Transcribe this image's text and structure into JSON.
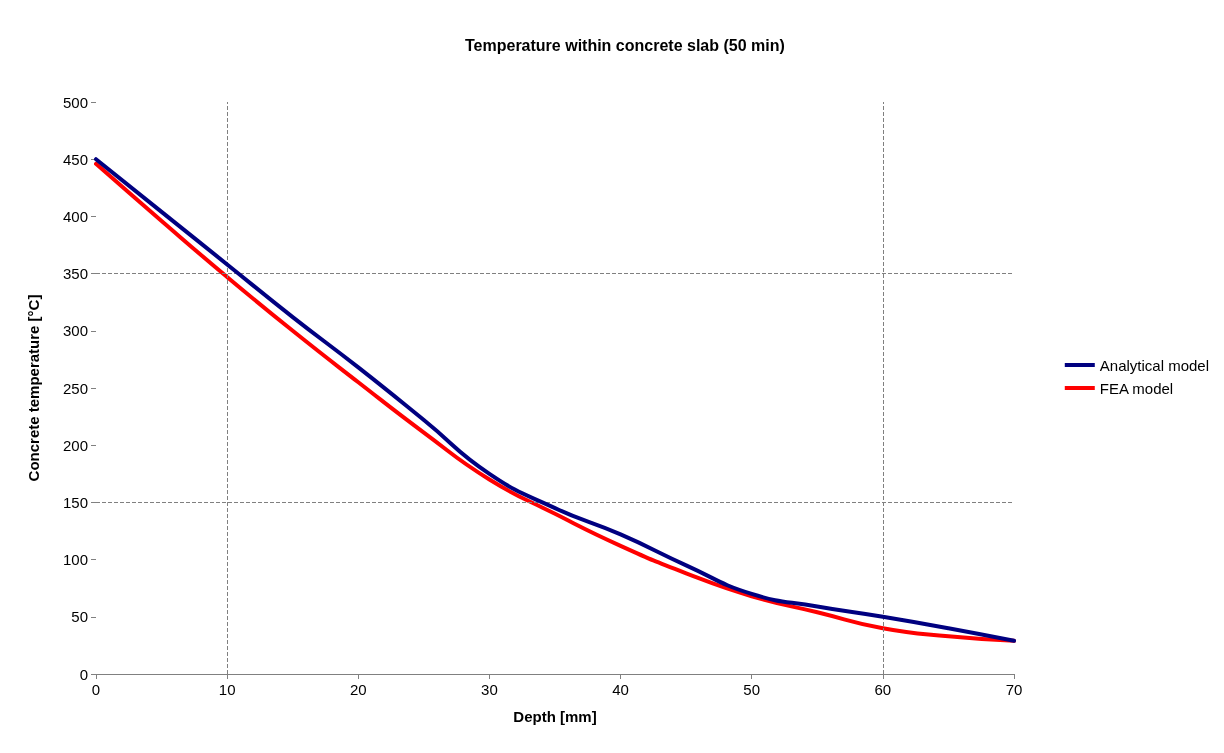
{
  "chart_data": {
    "type": "line",
    "title": "Temperature within concrete slab (50 min)",
    "xlabel": "Depth [mm]",
    "ylabel": "Concrete temperature [°C]",
    "x": [
      0,
      5,
      10,
      15,
      20,
      25,
      30,
      35,
      40,
      45,
      50,
      55,
      60,
      65,
      70
    ],
    "series": [
      {
        "name": "Analytical model",
        "color": "#000080",
        "values": [
          450,
          404,
          358,
          312,
          268,
          222,
          175,
          145,
          122,
          95,
          70,
          59,
          50,
          40,
          29
        ]
      },
      {
        "name": "FEA model",
        "color": "#ff0000",
        "values": [
          446,
          396,
          347,
          300,
          255,
          211,
          170,
          140,
          112,
          88,
          68,
          54,
          40,
          33,
          29
        ]
      }
    ],
    "xlim": [
      0,
      70
    ],
    "xticks": [
      0,
      10,
      20,
      30,
      40,
      50,
      60,
      70
    ],
    "ylim": [
      0,
      500
    ],
    "yticks": [
      0,
      50,
      100,
      150,
      200,
      250,
      300,
      350,
      400,
      450,
      500
    ],
    "ref_lines": [
      {
        "axis": "x",
        "value": 10,
        "color": "#808080",
        "line_style": "dashed"
      },
      {
        "axis": "x",
        "value": 60,
        "color": "#808080",
        "line_style": "dashed"
      },
      {
        "axis": "y",
        "value": 150,
        "color": "#808080",
        "line_style": "dashed"
      },
      {
        "axis": "y",
        "value": 350,
        "color": "#808080",
        "line_style": "dashed"
      }
    ],
    "grid": false,
    "legend": "right",
    "marker": "none",
    "line_style": "solid"
  }
}
